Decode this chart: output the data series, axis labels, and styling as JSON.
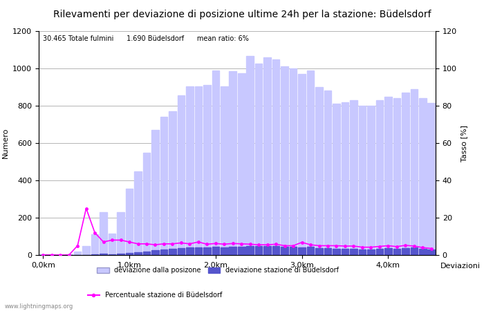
{
  "title": "Rilevamenti per deviazione di posizione ultime 24h per la stazione: Büdelsdorf",
  "subtitle": "30.465 Totale fulmini      1.690 Büdelsdorf      mean ratio: 6%",
  "xlabel": "Deviazioni",
  "ylabel_left": "Numero",
  "ylabel_right": "Tasso [%]",
  "ylim_left": [
    0,
    1200
  ],
  "ylim_right": [
    0,
    120
  ],
  "xtick_positions": [
    0,
    10,
    20,
    30,
    40
  ],
  "xtick_labels": [
    "0,0km",
    "1,0km",
    "2,0km",
    "3,0km",
    "4,0km"
  ],
  "ytick_left": [
    0,
    200,
    400,
    600,
    800,
    1000,
    1200
  ],
  "ytick_right": [
    0,
    20,
    40,
    60,
    80,
    100,
    120
  ],
  "bar_light_values": [
    5,
    2,
    1,
    3,
    20,
    50,
    110,
    230,
    115,
    230,
    355,
    450,
    550,
    670,
    740,
    770,
    855,
    905,
    905,
    910,
    990,
    905,
    985,
    975,
    1065,
    1025,
    1060,
    1050,
    1010,
    1000,
    970,
    990,
    900,
    880,
    810,
    820,
    830,
    800,
    800,
    830,
    850,
    840,
    870,
    890,
    840,
    815
  ],
  "bar_dark_values": [
    0,
    0,
    0,
    0,
    0,
    1,
    3,
    7,
    4,
    7,
    12,
    16,
    20,
    25,
    30,
    32,
    37,
    40,
    40,
    42,
    45,
    40,
    46,
    45,
    50,
    47,
    48,
    50,
    45,
    45,
    40,
    45,
    38,
    38,
    32,
    32,
    34,
    30,
    30,
    34,
    38,
    34,
    38,
    40,
    34,
    30
  ],
  "line_pct": [
    0,
    0,
    0,
    0,
    5,
    25,
    12,
    7,
    8,
    8,
    7,
    6,
    6,
    5.5,
    6,
    6,
    6.5,
    6,
    7,
    5.8,
    6.2,
    5.8,
    6.2,
    6,
    5.8,
    5.5,
    5.5,
    5.8,
    5,
    5,
    6.8,
    5.5,
    5,
    5,
    5,
    4.8,
    4.8,
    4.2,
    4.2,
    4.6,
    5,
    4.5,
    5.2,
    4.8,
    4,
    3.5
  ],
  "bar_light_color": "#c8c8ff",
  "bar_dark_color": "#5555cc",
  "line_color": "#ff00ff",
  "background_color": "#ffffff",
  "grid_color": "#999999",
  "watermark": "www.lightningmaps.org",
  "legend_labels": [
    "deviazione dalla posizone",
    "deviazione stazione di Büdelsdorf",
    "Percentuale stazione di Büdelsdorf"
  ],
  "title_fontsize": 10,
  "axis_fontsize": 8,
  "tick_fontsize": 8
}
